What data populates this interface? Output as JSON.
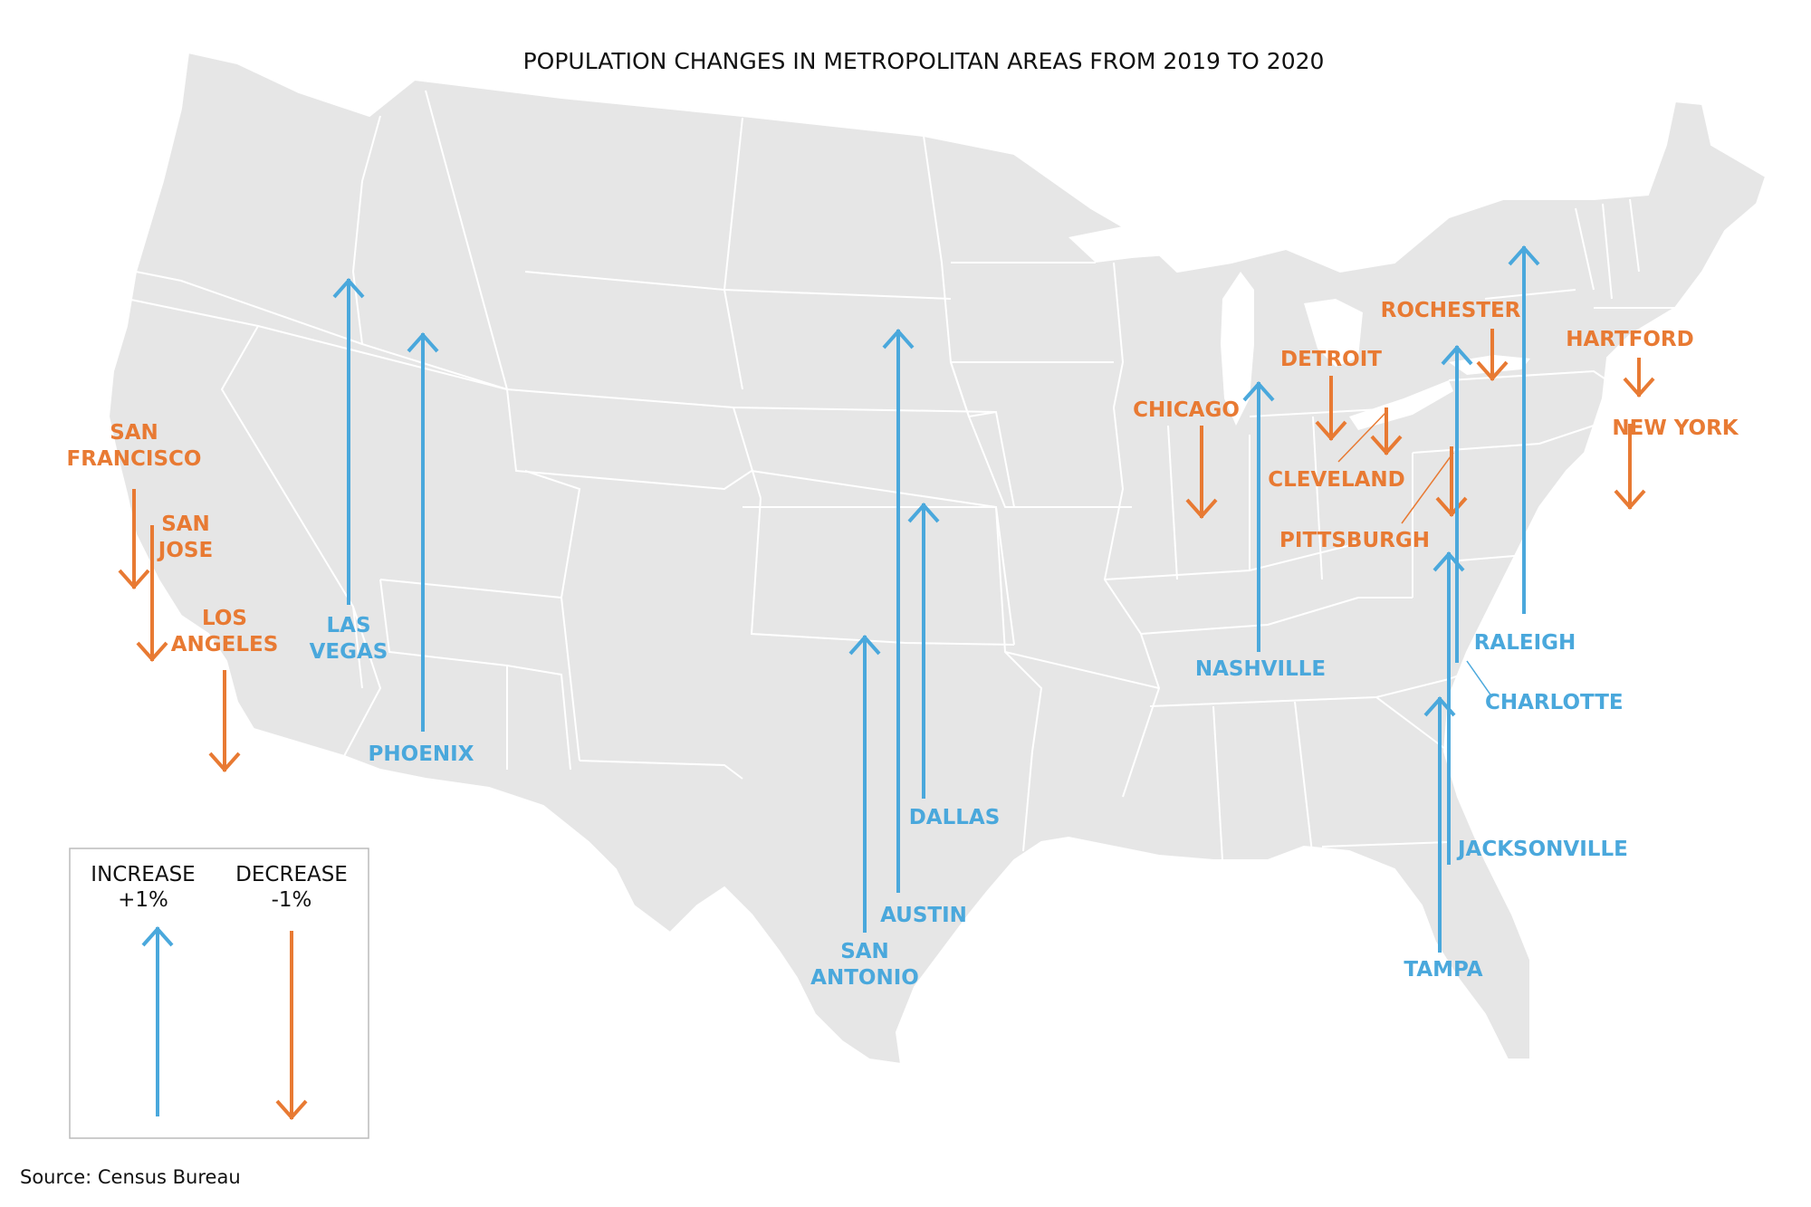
{
  "title": "POPULATION CHANGES IN METROPOLITAN AREAS FROM 2019 TO 2020",
  "source": "Source: Census Bureau",
  "colors": {
    "increase": "#4aa8dc",
    "decrease": "#e87a33",
    "land": "#e6e6e6",
    "border": "#ffffff"
  },
  "legend": {
    "increase_label": "INCREASE",
    "increase_value": "+1%",
    "decrease_label": "DECREASE",
    "decrease_value": "-1%"
  },
  "cities": [
    {
      "id": "san-francisco",
      "label": [
        "SAN",
        "FRANCISCO"
      ],
      "direction": "decrease"
    },
    {
      "id": "san-jose",
      "label": [
        "SAN",
        "JOSE"
      ],
      "direction": "decrease"
    },
    {
      "id": "los-angeles",
      "label": [
        "LOS",
        "ANGELES"
      ],
      "direction": "decrease"
    },
    {
      "id": "las-vegas",
      "label": [
        "LAS",
        "VEGAS"
      ],
      "direction": "increase"
    },
    {
      "id": "phoenix",
      "label": [
        "PHOENIX"
      ],
      "direction": "increase"
    },
    {
      "id": "austin",
      "label": [
        "AUSTIN"
      ],
      "direction": "increase"
    },
    {
      "id": "dallas",
      "label": [
        "DALLAS"
      ],
      "direction": "increase"
    },
    {
      "id": "san-antonio",
      "label": [
        "SAN",
        "ANTONIO"
      ],
      "direction": "increase"
    },
    {
      "id": "chicago",
      "label": [
        "CHICAGO"
      ],
      "direction": "decrease"
    },
    {
      "id": "nashville",
      "label": [
        "NASHVILLE"
      ],
      "direction": "increase"
    },
    {
      "id": "detroit",
      "label": [
        "DETROIT"
      ],
      "direction": "decrease"
    },
    {
      "id": "cleveland",
      "label": [
        "CLEVELAND"
      ],
      "direction": "decrease"
    },
    {
      "id": "pittsburgh",
      "label": [
        "PITTSBURGH"
      ],
      "direction": "decrease"
    },
    {
      "id": "rochester",
      "label": [
        "ROCHESTER"
      ],
      "direction": "decrease"
    },
    {
      "id": "raleigh",
      "label": [
        "RALEIGH"
      ],
      "direction": "increase"
    },
    {
      "id": "charlotte",
      "label": [
        "CHARLOTTE"
      ],
      "direction": "increase"
    },
    {
      "id": "jacksonville",
      "label": [
        "JACKSONVILLE"
      ],
      "direction": "increase"
    },
    {
      "id": "tampa",
      "label": [
        "TAMPA"
      ],
      "direction": "increase"
    },
    {
      "id": "hartford",
      "label": [
        "HARTFORD"
      ],
      "direction": "decrease"
    },
    {
      "id": "new-york",
      "label": [
        "NEW YORK"
      ],
      "direction": "decrease"
    }
  ]
}
